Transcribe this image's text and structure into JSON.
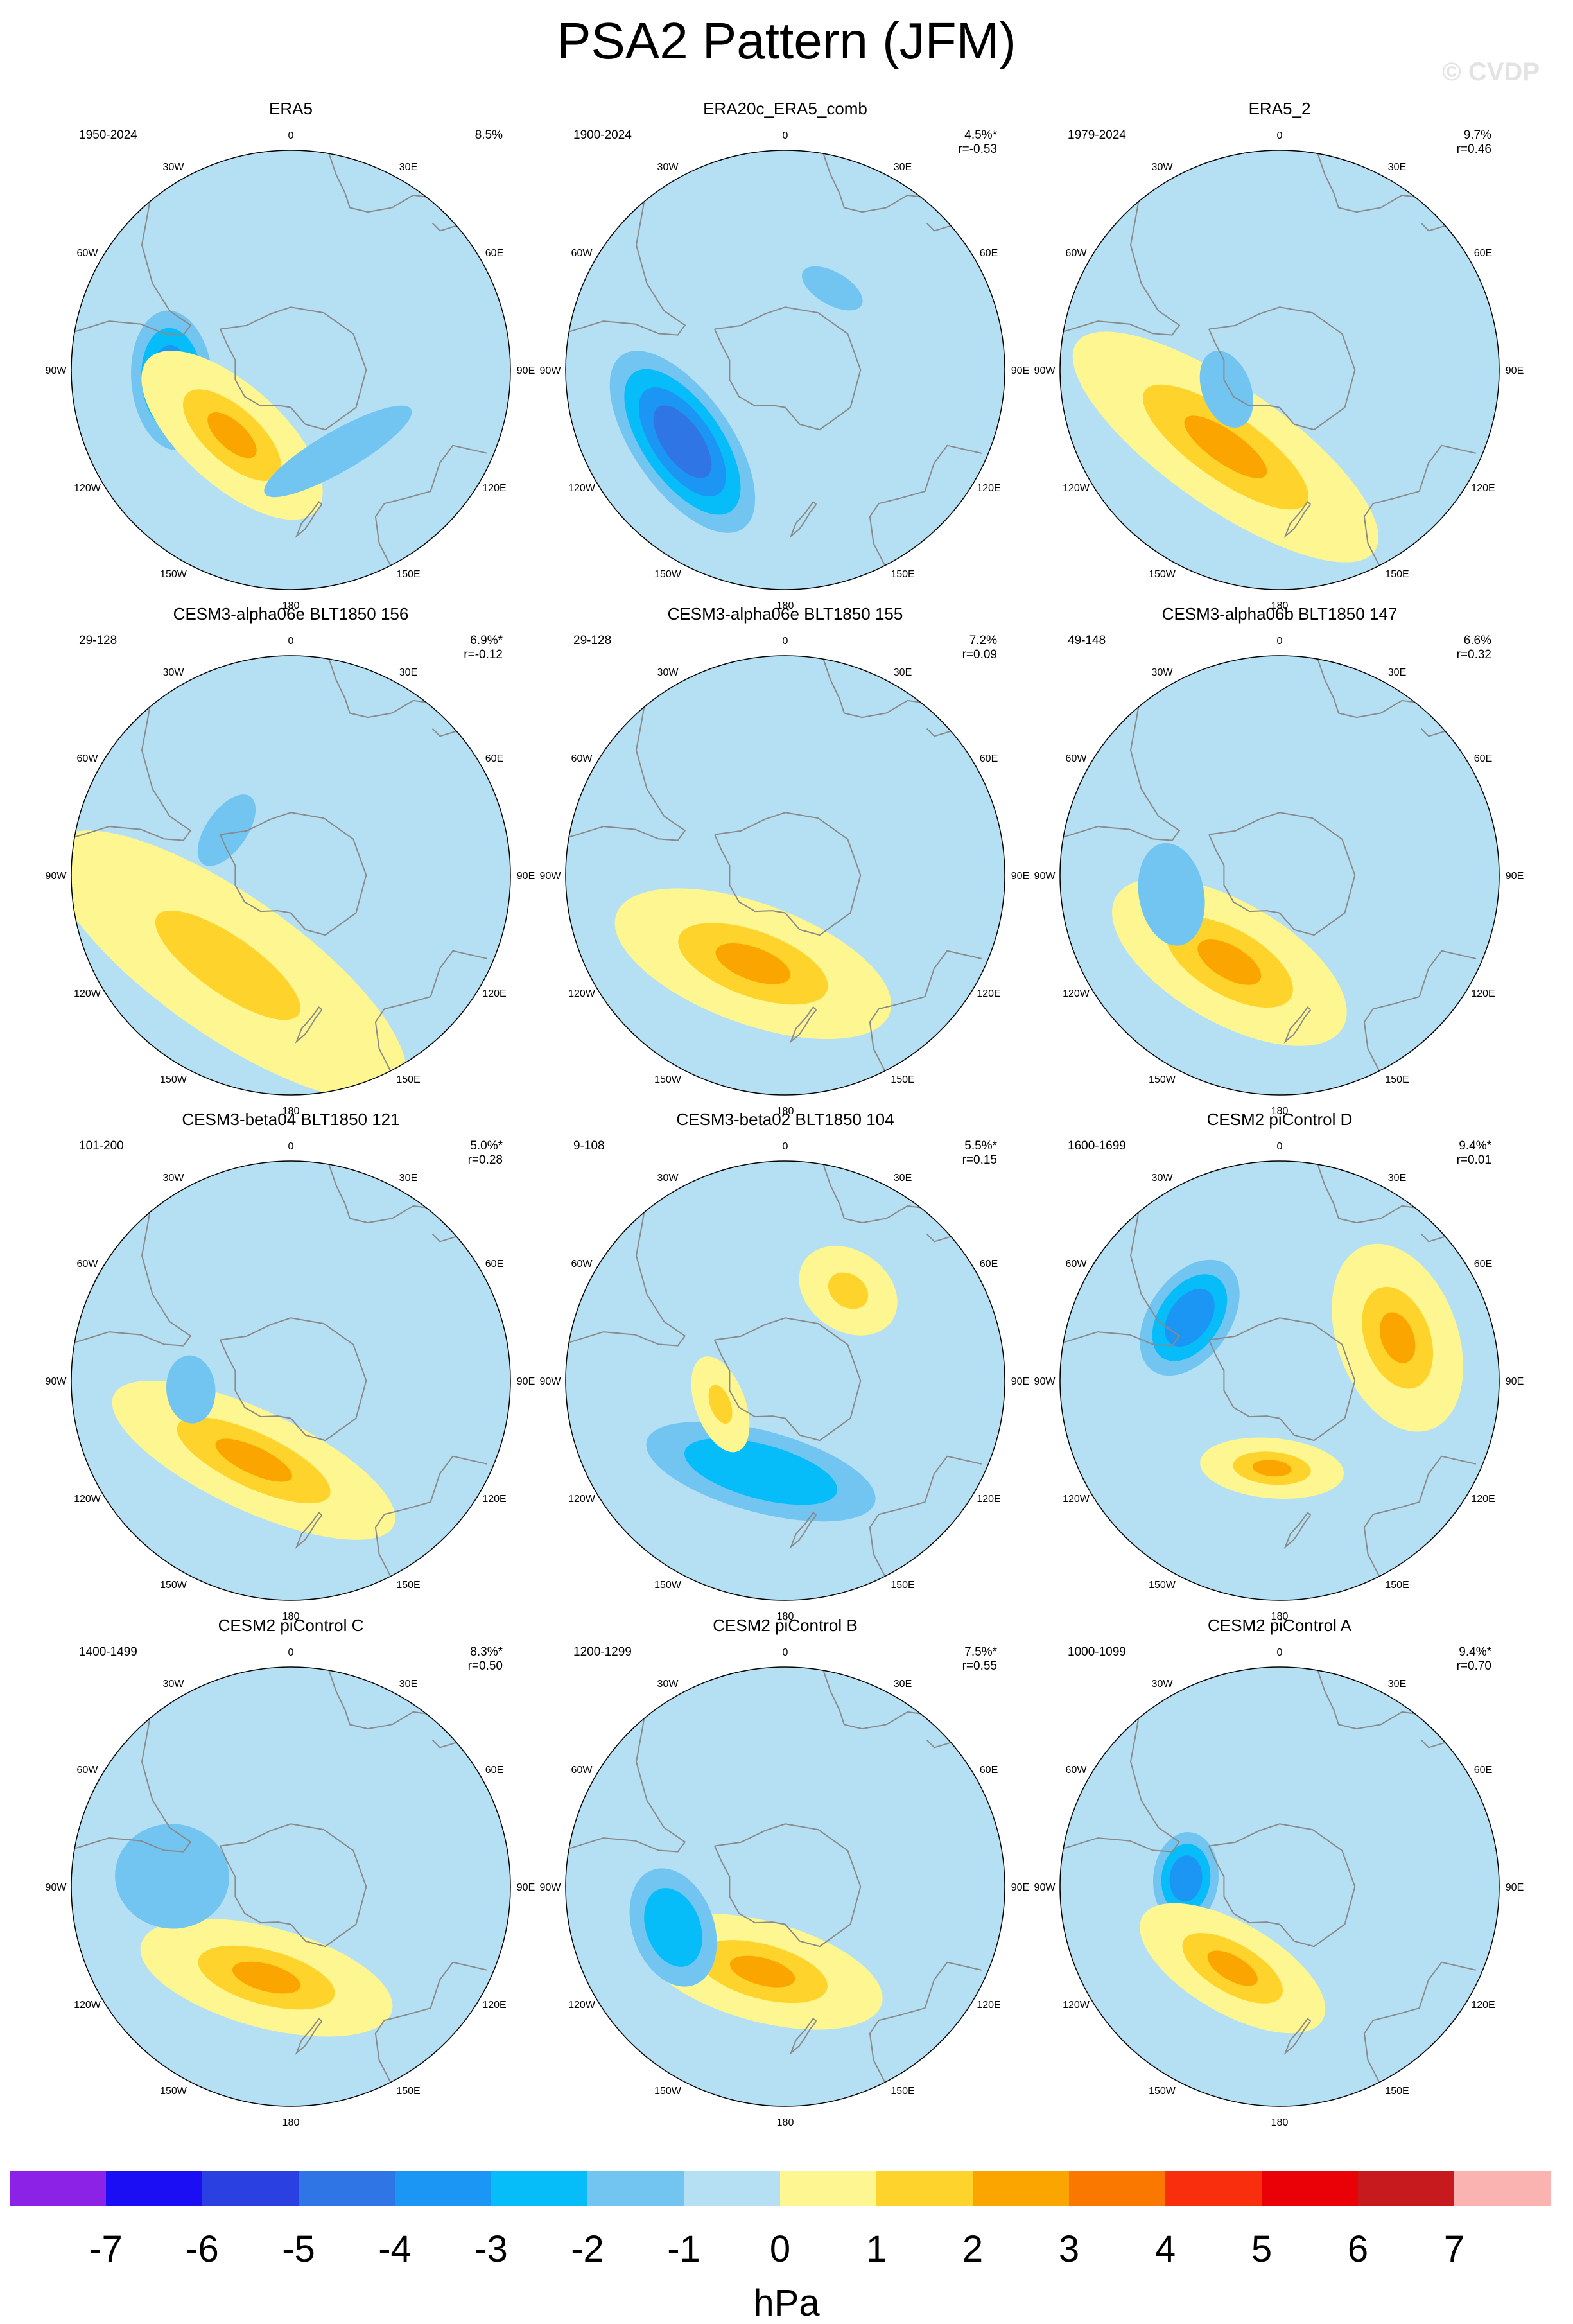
{
  "figure": {
    "title": "PSA2 Pattern (JFM)",
    "watermark": "© CVDP"
  },
  "longitude_labels": [
    "0",
    "30E",
    "60E",
    "90E",
    "120E",
    "150E",
    "180",
    "150W",
    "120W",
    "90W",
    "60W",
    "30W"
  ],
  "panels": [
    {
      "title": "ERA5",
      "years": "1950-2024",
      "pct": "8.5%",
      "corr": "",
      "anomalies": [
        {
          "sign": "neg",
          "peak": -3,
          "lon": -95,
          "lat": -52,
          "spread_lon": 16,
          "spread_lat": 10
        },
        {
          "sign": "pos",
          "peak": 2,
          "lon": -138,
          "lat": -62,
          "spread_lon": 22,
          "spread_lat": 10
        },
        {
          "sign": "neg",
          "peak": -1,
          "lon": 150,
          "lat": -60,
          "spread_lon": 20,
          "spread_lat": 5
        }
      ]
    },
    {
      "title": "ERA20c_ERA5_comb",
      "years": "1900-2024",
      "pct": "4.5%*",
      "corr": "r=-0.53",
      "anomalies": [
        {
          "sign": "neg",
          "peak": -4,
          "lon": -125,
          "lat": -50,
          "spread_lon": 24,
          "spread_lat": 12
        },
        {
          "sign": "neg",
          "peak": -1,
          "lon": 30,
          "lat": -60,
          "spread_lon": 8,
          "spread_lat": 4
        }
      ]
    },
    {
      "title": "ERA5_2",
      "years": "1979-2024",
      "pct": "9.7%",
      "corr": "r=0.46",
      "anomalies": [
        {
          "sign": "pos",
          "peak": 2,
          "lon": -145,
          "lat": -60,
          "spread_lon": 35,
          "spread_lat": 12
        },
        {
          "sign": "neg",
          "peak": -1,
          "lon": -110,
          "lat": -72,
          "spread_lon": 10,
          "spread_lat": 6
        }
      ]
    },
    {
      "title": "CESM3-alpha06e BLT1850 156",
      "years": "29-128",
      "pct": "6.9%*",
      "corr": "r=-0.12",
      "anomalies": [
        {
          "sign": "pos",
          "peak": 1,
          "lon": -145,
          "lat": -55,
          "spread_lon": 40,
          "spread_lat": 14
        },
        {
          "sign": "neg",
          "peak": -1,
          "lon": -55,
          "lat": -65,
          "spread_lon": 10,
          "spread_lat": 5
        }
      ]
    },
    {
      "title": "CESM3-alpha06e BLT1850 155",
      "years": "29-128",
      "pct": "7.2%",
      "corr": "r=0.09",
      "anomalies": [
        {
          "sign": "pos",
          "peak": 2,
          "lon": -160,
          "lat": -60,
          "spread_lon": 28,
          "spread_lat": 12
        }
      ]
    },
    {
      "title": "CESM3-alpha06b BLT1850 147",
      "years": "49-148",
      "pct": "6.6%",
      "corr": "r=0.32",
      "anomalies": [
        {
          "sign": "pos",
          "peak": 2,
          "lon": -150,
          "lat": -58,
          "spread_lon": 25,
          "spread_lat": 12
        },
        {
          "sign": "neg",
          "peak": -1,
          "lon": -100,
          "lat": -55,
          "spread_lon": 12,
          "spread_lat": 8
        }
      ]
    },
    {
      "title": "CESM3-beta04 BLT1850 121",
      "years": "101-200",
      "pct": "5.0%*",
      "corr": "r=0.28",
      "anomalies": [
        {
          "sign": "pos",
          "peak": 2,
          "lon": -155,
          "lat": -62,
          "spread_lon": 30,
          "spread_lat": 10
        },
        {
          "sign": "neg",
          "peak": -1,
          "lon": -95,
          "lat": -58,
          "spread_lon": 8,
          "spread_lat": 6
        }
      ]
    },
    {
      "title": "CESM3-beta02 BLT1850 104",
      "years": "9-108",
      "pct": "5.5%*",
      "corr": "r=0.15",
      "anomalies": [
        {
          "sign": "neg",
          "peak": -2,
          "lon": -165,
          "lat": -60,
          "spread_lon": 28,
          "spread_lat": 10
        },
        {
          "sign": "pos",
          "peak": 1,
          "lon": 35,
          "lat": -55,
          "spread_lon": 10,
          "spread_lat": 8
        },
        {
          "sign": "pos",
          "peak": 1,
          "lon": -110,
          "lat": -68,
          "spread_lon": 10,
          "spread_lat": 5
        }
      ]
    },
    {
      "title": "CESM2 piControl D",
      "years": "1600-1699",
      "pct": "9.4%*",
      "corr": "r=0.01",
      "anomalies": [
        {
          "sign": "neg",
          "peak": -3,
          "lon": -55,
          "lat": -55,
          "spread_lon": 15,
          "spread_lat": 10
        },
        {
          "sign": "pos",
          "peak": 2,
          "lon": 70,
          "lat": -50,
          "spread_lon": 18,
          "spread_lat": 12
        },
        {
          "sign": "pos",
          "peak": 2,
          "lon": -175,
          "lat": -62,
          "spread_lon": 14,
          "spread_lat": 6
        }
      ]
    },
    {
      "title": "CESM2 piControl C",
      "years": "1400-1499",
      "pct": "8.3%*",
      "corr": "r=0.50",
      "anomalies": [
        {
          "sign": "pos",
          "peak": 2,
          "lon": -165,
          "lat": -60,
          "spread_lon": 25,
          "spread_lat": 10
        },
        {
          "sign": "neg",
          "peak": -1,
          "lon": -85,
          "lat": -52,
          "spread_lon": 12,
          "spread_lat": 14
        }
      ]
    },
    {
      "title": "CESM2 piControl B",
      "years": "1200-1299",
      "pct": "7.5%*",
      "corr": "r=0.55",
      "anomalies": [
        {
          "sign": "pos",
          "peak": 2,
          "lon": -165,
          "lat": -62,
          "spread_lon": 24,
          "spread_lat": 10
        },
        {
          "sign": "neg",
          "peak": -2,
          "lon": -110,
          "lat": -52,
          "spread_lon": 14,
          "spread_lat": 10
        }
      ]
    },
    {
      "title": "CESM2 piControl A",
      "years": "1000-1099",
      "pct": "9.4%*",
      "corr": "r=0.70",
      "anomalies": [
        {
          "sign": "neg",
          "peak": -3,
          "lon": -85,
          "lat": -60,
          "spread_lon": 11,
          "spread_lat": 8
        },
        {
          "sign": "pos",
          "peak": 2,
          "lon": -150,
          "lat": -60,
          "spread_lon": 20,
          "spread_lat": 9
        }
      ]
    }
  ],
  "colorbar": {
    "units": "hPa",
    "labels": [
      "-7",
      "-6",
      "-5",
      "-4",
      "-3",
      "-2",
      "-1",
      "0",
      "1",
      "2",
      "3",
      "4",
      "5",
      "6",
      "7"
    ],
    "colors": [
      "#8c22e6",
      "#1b0ef5",
      "#2a40e0",
      "#3075e6",
      "#1c96f5",
      "#06bdf9",
      "#72c5f0",
      "#b5dff2",
      "#fdf691",
      "#fdd32c",
      "#fba600",
      "#fa7800",
      "#f92e0d",
      "#ea0007",
      "#c71a1f",
      "#fbb3b2"
    ]
  },
  "colors": {
    "land_outline": "#8a8a8a",
    "circle_outline": "#000000"
  }
}
